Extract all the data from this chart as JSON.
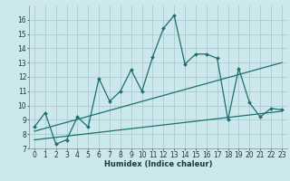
{
  "title": "",
  "xlabel": "Humidex (Indice chaleur)",
  "bg_color": "#cce8ec",
  "grid_color": "#aacccc",
  "line_color": "#1a7070",
  "xlim": [
    -0.5,
    23.5
  ],
  "ylim": [
    7,
    17
  ],
  "xticks": [
    0,
    1,
    2,
    3,
    4,
    5,
    6,
    7,
    8,
    9,
    10,
    11,
    12,
    13,
    14,
    15,
    16,
    17,
    18,
    19,
    20,
    21,
    22,
    23
  ],
  "yticks": [
    7,
    8,
    9,
    10,
    11,
    12,
    13,
    14,
    15,
    16
  ],
  "line1_x": [
    0,
    1,
    2,
    3,
    4,
    5,
    6,
    7,
    8,
    9,
    10,
    11,
    12,
    13,
    14,
    15,
    16,
    17,
    18,
    19,
    20,
    21,
    22,
    23
  ],
  "line1_y": [
    8.5,
    9.5,
    7.3,
    7.6,
    9.2,
    8.5,
    11.9,
    10.3,
    11.0,
    12.5,
    11.0,
    13.4,
    15.4,
    16.3,
    12.9,
    13.6,
    13.6,
    13.3,
    9.0,
    12.6,
    10.2,
    9.2,
    9.8,
    9.7
  ],
  "line2_x": [
    0,
    23
  ],
  "line2_y": [
    8.2,
    13.0
  ],
  "line3_x": [
    0,
    23
  ],
  "line3_y": [
    7.6,
    9.6
  ],
  "xlabel_fontsize": 6,
  "tick_fontsize": 5.5
}
